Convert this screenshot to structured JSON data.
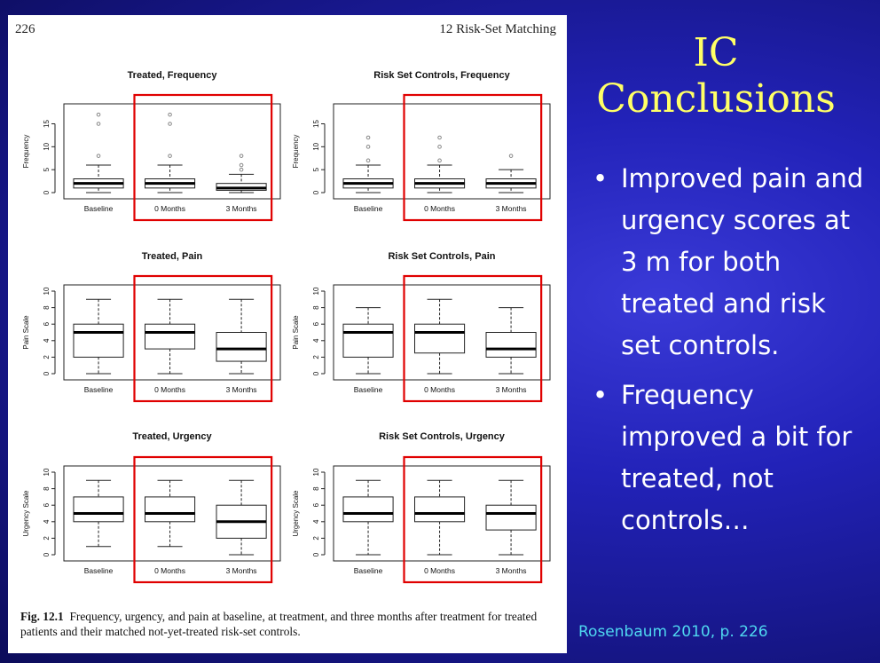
{
  "slide": {
    "title_line1": "IC",
    "title_line2": "Conclusions",
    "bullets": [
      "Improved pain and urgency scores at 3 m for both treated and risk set controls.",
      "Frequency improved a bit for treated, not controls…"
    ],
    "citation": "Rosenbaum 2010, p. 226"
  },
  "book_page": {
    "page_number": "226",
    "chapter": "12   Risk-Set Matching",
    "caption_label": "Fig. 12.1",
    "caption_text": "Frequency, urgency, and pain at baseline, at treatment, and three months after treatment for treated patients and their matched not-yet-treated risk-set controls."
  },
  "colors": {
    "title": "#ffff66",
    "citation": "#4fd8f0",
    "highlight_box": "#e00000",
    "bullet_text": "#ffffff"
  },
  "chart_data": [
    {
      "type": "boxplot",
      "title": "Treated, Frequency",
      "ylabel": "Frequency",
      "categories": [
        "Baseline",
        "0 Months",
        "3 Months"
      ],
      "yticks": [
        0,
        5,
        10,
        15
      ],
      "ylim": [
        0,
        18
      ],
      "boxes": [
        {
          "min": 0,
          "q1": 1,
          "median": 2,
          "q3": 3,
          "max": 6,
          "outliers": [
            8,
            15,
            17
          ]
        },
        {
          "min": 0,
          "q1": 1,
          "median": 2,
          "q3": 3,
          "max": 6,
          "outliers": [
            8,
            15,
            17
          ]
        },
        {
          "min": 0,
          "q1": 0.5,
          "median": 1,
          "q3": 2,
          "max": 4,
          "outliers": [
            5,
            6,
            8
          ]
        }
      ]
    },
    {
      "type": "boxplot",
      "title": "Risk Set Controls, Frequency",
      "ylabel": "Frequency",
      "categories": [
        "Baseline",
        "0 Months",
        "3 Months"
      ],
      "yticks": [
        0,
        5,
        10,
        15
      ],
      "ylim": [
        0,
        18
      ],
      "boxes": [
        {
          "min": 0,
          "q1": 1,
          "median": 2,
          "q3": 3,
          "max": 6,
          "outliers": [
            7,
            10,
            12
          ]
        },
        {
          "min": 0,
          "q1": 1,
          "median": 2,
          "q3": 3,
          "max": 6,
          "outliers": [
            7,
            10,
            12
          ]
        },
        {
          "min": 0,
          "q1": 1,
          "median": 2,
          "q3": 3,
          "max": 5,
          "outliers": [
            8
          ]
        }
      ]
    },
    {
      "type": "boxplot",
      "title": "Treated, Pain",
      "ylabel": "Pain Scale",
      "categories": [
        "Baseline",
        "0 Months",
        "3 Months"
      ],
      "yticks": [
        0,
        2,
        4,
        6,
        8,
        10
      ],
      "ylim": [
        0,
        10
      ],
      "boxes": [
        {
          "min": 0,
          "q1": 2,
          "median": 5,
          "q3": 6,
          "max": 9,
          "outliers": []
        },
        {
          "min": 0,
          "q1": 3,
          "median": 5,
          "q3": 6,
          "max": 9,
          "outliers": []
        },
        {
          "min": 0,
          "q1": 1.5,
          "median": 3,
          "q3": 5,
          "max": 9,
          "outliers": []
        }
      ]
    },
    {
      "type": "boxplot",
      "title": "Risk Set Controls, Pain",
      "ylabel": "Pain Scale",
      "categories": [
        "Baseline",
        "0 Months",
        "3 Months"
      ],
      "yticks": [
        0,
        2,
        4,
        6,
        8,
        10
      ],
      "ylim": [
        0,
        10
      ],
      "boxes": [
        {
          "min": 0,
          "q1": 2,
          "median": 5,
          "q3": 6,
          "max": 8,
          "outliers": []
        },
        {
          "min": 0,
          "q1": 2.5,
          "median": 5,
          "q3": 6,
          "max": 9,
          "outliers": []
        },
        {
          "min": 0,
          "q1": 2,
          "median": 3,
          "q3": 5,
          "max": 8,
          "outliers": []
        }
      ]
    },
    {
      "type": "boxplot",
      "title": "Treated, Urgency",
      "ylabel": "Urgency Scale",
      "categories": [
        "Baseline",
        "0 Months",
        "3 Months"
      ],
      "yticks": [
        0,
        2,
        4,
        6,
        8,
        10
      ],
      "ylim": [
        0,
        10
      ],
      "boxes": [
        {
          "min": 1,
          "q1": 4,
          "median": 5,
          "q3": 7,
          "max": 9,
          "outliers": []
        },
        {
          "min": 1,
          "q1": 4,
          "median": 5,
          "q3": 7,
          "max": 9,
          "outliers": []
        },
        {
          "min": 0,
          "q1": 2,
          "median": 4,
          "q3": 6,
          "max": 9,
          "outliers": []
        }
      ]
    },
    {
      "type": "boxplot",
      "title": "Risk Set Controls, Urgency",
      "ylabel": "Urgency Scale",
      "categories": [
        "Baseline",
        "0 Months",
        "3 Months"
      ],
      "yticks": [
        0,
        2,
        4,
        6,
        8,
        10
      ],
      "ylim": [
        0,
        10
      ],
      "boxes": [
        {
          "min": 0,
          "q1": 4,
          "median": 5,
          "q3": 7,
          "max": 9,
          "outliers": []
        },
        {
          "min": 0,
          "q1": 4,
          "median": 5,
          "q3": 7,
          "max": 9,
          "outliers": []
        },
        {
          "min": 0,
          "q1": 3,
          "median": 5,
          "q3": 6,
          "max": 9,
          "outliers": []
        }
      ]
    }
  ]
}
